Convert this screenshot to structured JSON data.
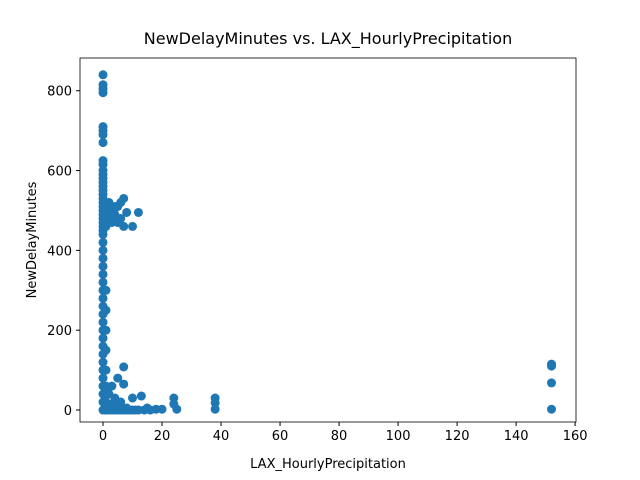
{
  "chart_data": {
    "type": "scatter",
    "title": "NewDelayMinutes vs. LAX_HourlyPrecipitation",
    "x_label": "LAX_HourlyPrecipitation",
    "y_label": "NewDelayMinutes",
    "xlim": [
      -7.8,
      160.3
    ],
    "ylim": [
      -30,
      882
    ],
    "xticks": [
      0,
      20,
      40,
      60,
      80,
      100,
      120,
      140,
      160
    ],
    "yticks": [
      0,
      200,
      400,
      600,
      800
    ],
    "color": "#1f77b4",
    "x": [
      0,
      0,
      0,
      0,
      0,
      0,
      0,
      0,
      0,
      0,
      0,
      0,
      0,
      0,
      0,
      0,
      0,
      0,
      0,
      0,
      0,
      0,
      0,
      0,
      0,
      0,
      0,
      0,
      0,
      0,
      0,
      0,
      0,
      0,
      0,
      0,
      0,
      0,
      0,
      0,
      0,
      0,
      0,
      0,
      0,
      0,
      0,
      0,
      0,
      1,
      1,
      1,
      1,
      1,
      1,
      1,
      1,
      1,
      1,
      1,
      1,
      1,
      1,
      2,
      3,
      4,
      5,
      6,
      7,
      7,
      8,
      10,
      12,
      5,
      2,
      4,
      6,
      3,
      7,
      7,
      5,
      3,
      2,
      4,
      6,
      10,
      13,
      15,
      18,
      20,
      24,
      24,
      25,
      38,
      38,
      38,
      152,
      152,
      152,
      152,
      1,
      2,
      3,
      4,
      5,
      6,
      7,
      8,
      9,
      10,
      11,
      12,
      14,
      16,
      2,
      4,
      6,
      8
    ],
    "y": [
      840,
      815,
      805,
      795,
      710,
      700,
      690,
      670,
      625,
      615,
      600,
      590,
      580,
      570,
      560,
      550,
      540,
      530,
      520,
      510,
      500,
      490,
      480,
      470,
      460,
      450,
      440,
      420,
      400,
      380,
      360,
      340,
      320,
      300,
      280,
      260,
      240,
      220,
      200,
      180,
      160,
      140,
      120,
      100,
      80,
      60,
      40,
      20,
      0,
      500,
      480,
      460,
      300,
      250,
      200,
      150,
      100,
      60,
      40,
      20,
      10,
      5,
      0,
      520,
      500,
      490,
      510,
      520,
      530,
      460,
      495,
      460,
      495,
      470,
      480,
      510,
      480,
      470,
      108,
      65,
      80,
      60,
      40,
      30,
      20,
      30,
      35,
      5,
      2,
      2,
      30,
      15,
      2,
      30,
      18,
      2,
      115,
      110,
      68,
      2,
      0,
      0,
      0,
      0,
      0,
      0,
      0,
      0,
      0,
      0,
      0,
      0,
      0,
      0,
      15,
      20,
      10,
      5
    ]
  }
}
